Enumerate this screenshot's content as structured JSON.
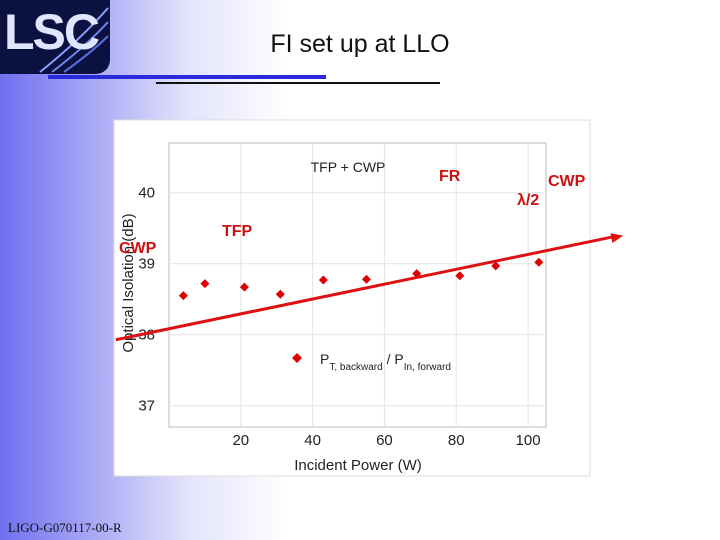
{
  "slide": {
    "title": "FI set up at LLO",
    "logo_text": "LSC",
    "footer": "LIGO-G070117-00-R"
  },
  "annotations": {
    "fr": "FR",
    "lambda": "λ/2",
    "cwp_right": "CWP",
    "tfp": "TFP",
    "cwp_left": "CWP"
  },
  "colors": {
    "accent_red": "#cc1111",
    "marker_red": "#dd0000",
    "title_blue": "#2a2adc"
  },
  "chart_data": {
    "type": "scatter",
    "title": "TFP + CWP",
    "xlabel": "Incident Power (W)",
    "ylabel": "Optical Isolation (dB)",
    "xlim": [
      0,
      105
    ],
    "ylim": [
      36.7,
      40.7
    ],
    "xticks": [
      20,
      40,
      60,
      80,
      100
    ],
    "yticks": [
      37,
      38,
      39,
      40
    ],
    "legend": {
      "label_main1": "P",
      "label_sub1": "T, backward",
      "label_sep": " / P",
      "label_sub2": "In, forward",
      "position": "center-bottom"
    },
    "series": [
      {
        "name": "PT, backward / PIn, forward",
        "x": [
          4,
          10,
          21,
          31,
          43,
          55,
          69,
          81,
          91,
          103
        ],
        "y": [
          38.55,
          38.72,
          38.67,
          38.57,
          38.77,
          38.78,
          38.86,
          38.83,
          38.97,
          39.02
        ]
      }
    ],
    "trend_line": {
      "x": [
        -2,
        107
      ],
      "y": [
        38.02,
        39.28
      ]
    }
  }
}
